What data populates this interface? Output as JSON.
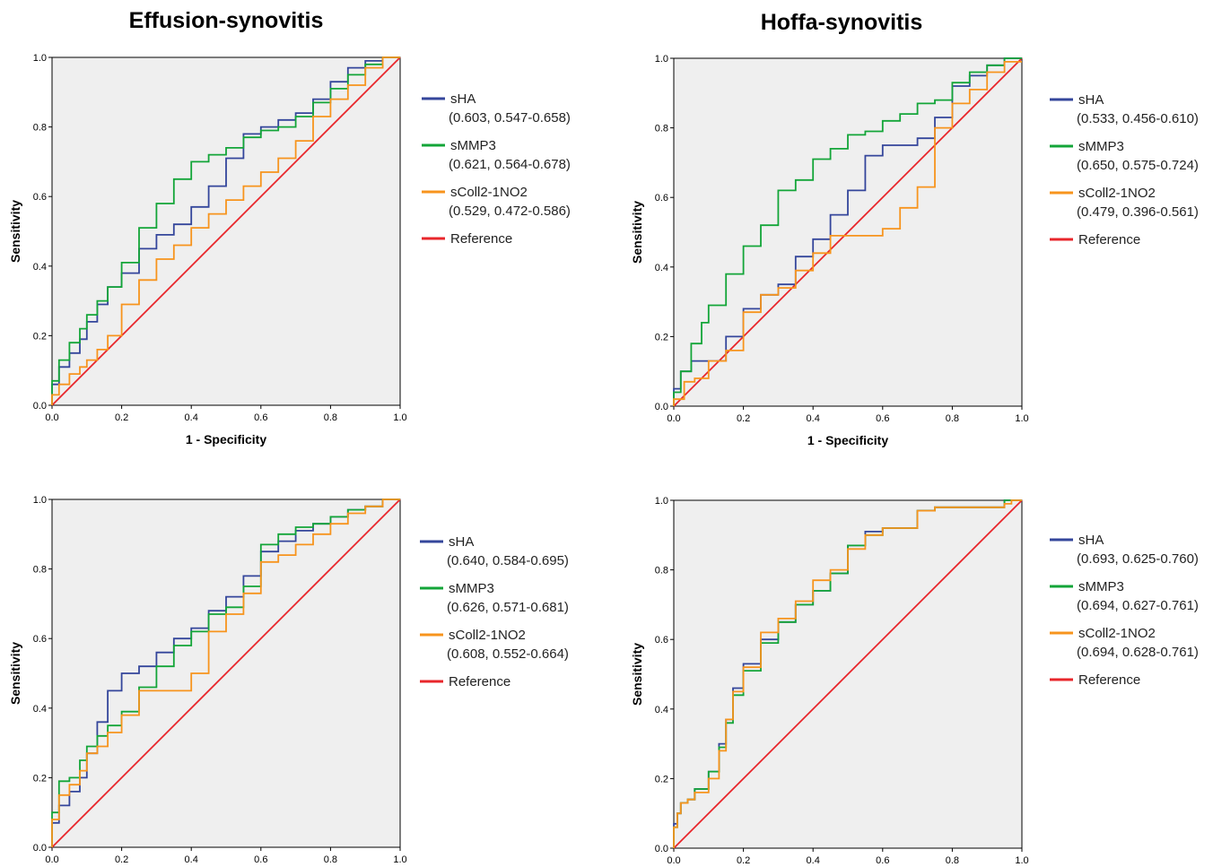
{
  "column_titles": [
    "Effusion-synovitis",
    "Hoffa-synovitis"
  ],
  "colors": {
    "sHA": "#34469b",
    "sMMP3": "#13a538",
    "sColl2-1NO2": "#f7941d",
    "Reference": "#e8262b",
    "plot_background": "#efefef"
  },
  "chart_data": [
    {
      "type": "line",
      "panel": "top-left",
      "title": "",
      "xlabel": "1 - Specificity",
      "ylabel": "Sensitivity",
      "xlim": [
        0,
        1
      ],
      "ylim": [
        0,
        1
      ],
      "x_ticks": [
        "0.0",
        "0.2",
        "0.4",
        "0.6",
        "0.8",
        "1.0"
      ],
      "y_ticks": [
        "0.0",
        "0.2",
        "0.4",
        "0.6",
        "0.8",
        "1.0"
      ],
      "grid": false,
      "legend_position": "right",
      "series": [
        {
          "name": "sHA",
          "stats": "(0.603, 0.547-0.658)",
          "x": [
            0,
            0.02,
            0.05,
            0.08,
            0.1,
            0.13,
            0.16,
            0.2,
            0.25,
            0.3,
            0.35,
            0.4,
            0.45,
            0.5,
            0.55,
            0.6,
            0.65,
            0.7,
            0.75,
            0.8,
            0.85,
            0.9,
            0.95,
            1
          ],
          "y": [
            0,
            0.06,
            0.11,
            0.15,
            0.19,
            0.24,
            0.29,
            0.34,
            0.38,
            0.45,
            0.49,
            0.52,
            0.57,
            0.63,
            0.71,
            0.78,
            0.8,
            0.82,
            0.84,
            0.88,
            0.93,
            0.97,
            0.99,
            1
          ]
        },
        {
          "name": "sMMP3",
          "stats": "(0.621, 0.564-0.678)",
          "x": [
            0,
            0.02,
            0.05,
            0.08,
            0.1,
            0.13,
            0.16,
            0.2,
            0.25,
            0.3,
            0.35,
            0.4,
            0.45,
            0.5,
            0.55,
            0.6,
            0.65,
            0.7,
            0.75,
            0.8,
            0.85,
            0.9,
            0.95,
            1
          ],
          "y": [
            0,
            0.07,
            0.13,
            0.18,
            0.22,
            0.26,
            0.3,
            0.34,
            0.41,
            0.51,
            0.58,
            0.65,
            0.7,
            0.72,
            0.74,
            0.77,
            0.79,
            0.8,
            0.83,
            0.87,
            0.91,
            0.95,
            0.98,
            1
          ]
        },
        {
          "name": "sColl2-1NO2",
          "stats": "(0.529, 0.472-0.586)",
          "x": [
            0,
            0.02,
            0.05,
            0.08,
            0.1,
            0.13,
            0.16,
            0.2,
            0.25,
            0.3,
            0.35,
            0.4,
            0.45,
            0.5,
            0.55,
            0.6,
            0.65,
            0.7,
            0.75,
            0.8,
            0.85,
            0.9,
            0.95,
            1
          ],
          "y": [
            0,
            0.03,
            0.06,
            0.09,
            0.11,
            0.13,
            0.16,
            0.2,
            0.29,
            0.36,
            0.42,
            0.46,
            0.51,
            0.55,
            0.59,
            0.63,
            0.67,
            0.71,
            0.76,
            0.83,
            0.88,
            0.92,
            0.97,
            1
          ]
        },
        {
          "name": "Reference",
          "stats": "",
          "x": [
            0,
            1
          ],
          "y": [
            0,
            1
          ]
        }
      ]
    },
    {
      "type": "line",
      "panel": "top-right",
      "title": "",
      "xlabel": "1 - Specificity",
      "ylabel": "Sensitivity",
      "xlim": [
        0,
        1
      ],
      "ylim": [
        0,
        1
      ],
      "x_ticks": [
        "0.0",
        "0.2",
        "0.4",
        "0.6",
        "0.8",
        "1.0"
      ],
      "y_ticks": [
        "0.0",
        "0.2",
        "0.4",
        "0.6",
        "0.8",
        "1.0"
      ],
      "grid": false,
      "legend_position": "right",
      "series": [
        {
          "name": "sHA",
          "stats": "(0.533, 0.456-0.610)",
          "x": [
            0,
            0.02,
            0.05,
            0.1,
            0.15,
            0.2,
            0.25,
            0.3,
            0.35,
            0.4,
            0.45,
            0.5,
            0.55,
            0.6,
            0.65,
            0.7,
            0.75,
            0.8,
            0.85,
            0.9,
            0.95,
            1
          ],
          "y": [
            0,
            0.05,
            0.1,
            0.13,
            0.13,
            0.2,
            0.28,
            0.32,
            0.35,
            0.43,
            0.48,
            0.55,
            0.62,
            0.72,
            0.75,
            0.75,
            0.77,
            0.83,
            0.92,
            0.95,
            0.98,
            1
          ]
        },
        {
          "name": "sMMP3",
          "stats": "(0.650, 0.575-0.724)",
          "x": [
            0,
            0.02,
            0.05,
            0.08,
            0.1,
            0.15,
            0.2,
            0.25,
            0.3,
            0.35,
            0.4,
            0.45,
            0.5,
            0.55,
            0.6,
            0.65,
            0.7,
            0.75,
            0.8,
            0.85,
            0.9,
            0.95,
            1
          ],
          "y": [
            0,
            0.04,
            0.1,
            0.18,
            0.24,
            0.29,
            0.38,
            0.46,
            0.52,
            0.62,
            0.65,
            0.71,
            0.74,
            0.78,
            0.79,
            0.82,
            0.84,
            0.87,
            0.88,
            0.93,
            0.96,
            0.98,
            1
          ]
        },
        {
          "name": "sColl2-1NO2",
          "stats": "(0.479, 0.396-0.561)",
          "x": [
            0,
            0.03,
            0.06,
            0.1,
            0.15,
            0.2,
            0.25,
            0.3,
            0.35,
            0.4,
            0.45,
            0.5,
            0.55,
            0.6,
            0.65,
            0.7,
            0.75,
            0.8,
            0.85,
            0.9,
            0.95,
            1
          ],
          "y": [
            0,
            0.02,
            0.07,
            0.08,
            0.13,
            0.16,
            0.27,
            0.32,
            0.34,
            0.39,
            0.44,
            0.49,
            0.49,
            0.49,
            0.51,
            0.57,
            0.63,
            0.8,
            0.87,
            0.91,
            0.96,
            0.99
          ]
        },
        {
          "name": "Reference",
          "stats": "",
          "x": [
            0,
            1
          ],
          "y": [
            0,
            1
          ]
        }
      ]
    },
    {
      "type": "line",
      "panel": "bottom-left",
      "title": "",
      "xlabel": "",
      "ylabel": "Sensitivity",
      "xlim": [
        0,
        1
      ],
      "ylim": [
        0,
        1
      ],
      "x_ticks": [
        "0.0",
        "0.2",
        "0.4",
        "0.6",
        "0.8",
        "1.0"
      ],
      "y_ticks": [
        "0.0",
        "0.2",
        "0.4",
        "0.6",
        "0.8",
        "1.0"
      ],
      "grid": false,
      "legend_position": "right",
      "series": [
        {
          "name": "sHA",
          "stats": "(0.640, 0.584-0.695)",
          "x": [
            0,
            0.02,
            0.05,
            0.08,
            0.1,
            0.13,
            0.16,
            0.2,
            0.25,
            0.3,
            0.35,
            0.4,
            0.45,
            0.5,
            0.55,
            0.6,
            0.65,
            0.7,
            0.75,
            0.8,
            0.85,
            0.9,
            0.95,
            1
          ],
          "y": [
            0,
            0.07,
            0.12,
            0.16,
            0.2,
            0.27,
            0.36,
            0.45,
            0.5,
            0.52,
            0.56,
            0.6,
            0.63,
            0.68,
            0.72,
            0.78,
            0.85,
            0.88,
            0.91,
            0.93,
            0.95,
            0.97,
            0.98,
            1
          ]
        },
        {
          "name": "sMMP3",
          "stats": "(0.626, 0.571-0.681)",
          "x": [
            0,
            0.02,
            0.05,
            0.08,
            0.1,
            0.13,
            0.16,
            0.2,
            0.25,
            0.3,
            0.35,
            0.4,
            0.45,
            0.5,
            0.55,
            0.6,
            0.65,
            0.7,
            0.75,
            0.8,
            0.85,
            0.9,
            0.95,
            1
          ],
          "y": [
            0,
            0.1,
            0.19,
            0.2,
            0.25,
            0.29,
            0.32,
            0.35,
            0.39,
            0.46,
            0.52,
            0.58,
            0.62,
            0.67,
            0.69,
            0.75,
            0.87,
            0.9,
            0.92,
            0.93,
            0.95,
            0.97,
            0.98,
            1
          ]
        },
        {
          "name": "sColl2-1NO2",
          "stats": "(0.608, 0.552-0.664)",
          "x": [
            0,
            0.02,
            0.05,
            0.08,
            0.1,
            0.13,
            0.16,
            0.2,
            0.25,
            0.3,
            0.35,
            0.4,
            0.45,
            0.5,
            0.55,
            0.6,
            0.65,
            0.7,
            0.75,
            0.8,
            0.85,
            0.9,
            0.95,
            1
          ],
          "y": [
            0,
            0.08,
            0.15,
            0.18,
            0.22,
            0.27,
            0.29,
            0.33,
            0.38,
            0.45,
            0.45,
            0.45,
            0.5,
            0.62,
            0.67,
            0.73,
            0.82,
            0.84,
            0.87,
            0.9,
            0.93,
            0.96,
            0.98,
            1
          ]
        },
        {
          "name": "Reference",
          "stats": "",
          "x": [
            0,
            1
          ],
          "y": [
            0,
            1
          ]
        }
      ]
    },
    {
      "type": "line",
      "panel": "bottom-right",
      "title": "",
      "xlabel": "",
      "ylabel": "Sensitivity",
      "xlim": [
        0,
        1
      ],
      "ylim": [
        0,
        1
      ],
      "x_ticks": [
        "0.0",
        "0.2",
        "0.4",
        "0.6",
        "0.8",
        "1.0"
      ],
      "y_ticks": [
        "0.0",
        "0.2",
        "0.4",
        "0.6",
        "0.8",
        "1.0"
      ],
      "grid": false,
      "legend_position": "right",
      "series": [
        {
          "name": "sHA",
          "stats": "(0.693, 0.625-0.760)",
          "x": [
            0,
            0.01,
            0.02,
            0.04,
            0.06,
            0.1,
            0.13,
            0.15,
            0.17,
            0.2,
            0.25,
            0.3,
            0.35,
            0.4,
            0.45,
            0.5,
            0.55,
            0.6,
            0.65,
            0.7,
            0.75,
            0.8,
            0.85,
            0.9,
            0.95,
            0.97,
            1
          ],
          "y": [
            0,
            0.07,
            0.1,
            0.13,
            0.14,
            0.17,
            0.22,
            0.3,
            0.37,
            0.46,
            0.53,
            0.6,
            0.65,
            0.7,
            0.74,
            0.79,
            0.87,
            0.91,
            0.92,
            0.92,
            0.97,
            0.98,
            0.98,
            0.98,
            0.98,
            1,
            1
          ]
        },
        {
          "name": "sMMP3",
          "stats": "(0.694, 0.627-0.761)",
          "x": [
            0,
            0.01,
            0.02,
            0.04,
            0.06,
            0.1,
            0.13,
            0.15,
            0.17,
            0.2,
            0.25,
            0.3,
            0.35,
            0.4,
            0.45,
            0.5,
            0.55,
            0.6,
            0.65,
            0.7,
            0.75,
            0.8,
            0.85,
            0.9,
            0.95,
            0.97,
            1
          ],
          "y": [
            0,
            0.06,
            0.1,
            0.13,
            0.14,
            0.17,
            0.22,
            0.29,
            0.36,
            0.44,
            0.51,
            0.59,
            0.65,
            0.7,
            0.74,
            0.79,
            0.87,
            0.9,
            0.92,
            0.92,
            0.97,
            0.98,
            0.98,
            0.98,
            0.98,
            1,
            1
          ]
        },
        {
          "name": "sColl2-1NO2",
          "stats": "(0.694, 0.628-0.761)",
          "x": [
            0,
            0.01,
            0.02,
            0.04,
            0.06,
            0.1,
            0.13,
            0.15,
            0.17,
            0.2,
            0.25,
            0.3,
            0.35,
            0.4,
            0.45,
            0.5,
            0.55,
            0.6,
            0.65,
            0.7,
            0.75,
            0.8,
            0.85,
            0.9,
            0.95,
            0.97,
            1
          ],
          "y": [
            0,
            0.06,
            0.1,
            0.13,
            0.14,
            0.16,
            0.2,
            0.28,
            0.37,
            0.45,
            0.52,
            0.62,
            0.66,
            0.71,
            0.77,
            0.8,
            0.86,
            0.9,
            0.92,
            0.92,
            0.97,
            0.98,
            0.98,
            0.98,
            0.98,
            0.99,
            1
          ]
        },
        {
          "name": "Reference",
          "stats": "",
          "x": [
            0,
            1
          ],
          "y": [
            0,
            1
          ]
        }
      ]
    }
  ]
}
